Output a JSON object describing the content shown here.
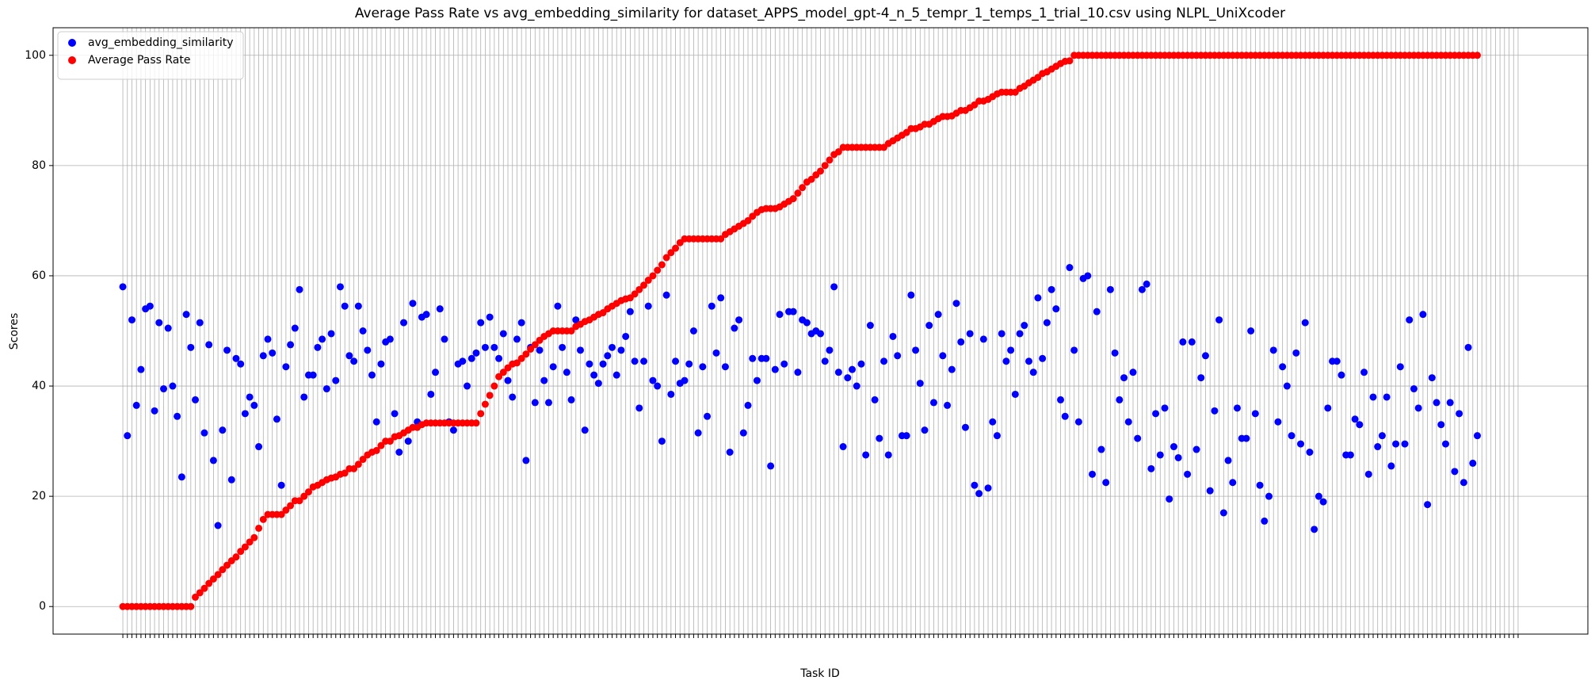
{
  "chart_data": {
    "type": "scatter",
    "title": "Average Pass Rate vs avg_embedding_similarity for dataset_APPS_model_gpt-4_n_5_tempr_1_temps_1_trial_10.csv using NLPL_UniXcoder",
    "x_label": "Task ID",
    "y_label": "Scores",
    "legend": "upper left",
    "grid": true,
    "ylim": [
      -5,
      105
    ],
    "yticks": [
      0,
      20,
      40,
      60,
      80,
      100
    ],
    "categories": [
      null,
      null,
      null,
      null,
      null,
      null,
      null,
      null,
      null,
      null,
      null,
      null,
      null,
      null,
      null,
      null,
      null,
      null,
      null,
      null,
      null,
      null,
      null,
      null,
      null,
      null,
      null,
      null,
      null,
      null,
      null,
      null,
      null,
      null,
      null,
      null,
      null,
      null,
      null,
      null,
      null,
      null,
      null,
      null,
      null,
      null,
      null,
      null,
      null,
      null,
      null,
      null,
      null,
      null,
      null,
      null,
      null,
      null,
      null,
      null,
      null,
      null,
      null,
      null,
      null,
      null,
      null,
      null,
      null,
      null,
      null,
      null,
      null,
      null,
      null,
      null,
      null,
      null,
      null,
      null,
      null,
      null,
      null,
      null,
      null,
      null,
      null,
      null,
      null,
      null,
      null,
      null,
      null,
      null,
      null,
      null,
      null,
      null,
      null,
      null,
      null,
      null,
      null,
      null,
      null,
      null,
      null,
      null,
      null,
      null,
      null,
      null,
      null,
      null,
      null,
      null,
      null,
      null,
      null,
      null,
      null,
      null,
      null,
      null,
      null,
      null,
      null,
      null,
      null,
      null,
      null,
      null,
      null,
      null,
      null,
      null,
      null,
      null,
      null,
      null,
      null,
      null,
      null,
      null,
      null,
      null,
      null,
      null,
      null,
      null,
      null,
      null,
      null,
      null,
      null,
      null,
      null,
      null,
      null,
      null,
      null,
      null,
      null,
      null,
      null,
      null,
      null,
      null,
      null,
      null,
      null,
      null,
      null,
      null,
      null,
      null,
      null,
      null,
      null,
      null,
      null,
      null,
      null,
      null,
      null,
      null,
      null,
      null,
      null,
      null,
      null,
      null,
      null,
      null,
      null,
      null,
      null,
      null,
      null,
      null,
      null,
      null,
      null,
      null,
      null,
      null,
      null,
      null,
      null,
      null,
      null,
      null,
      null,
      null,
      null,
      null,
      null,
      null,
      null,
      null,
      null,
      null,
      null,
      null,
      null,
      null,
      null,
      null,
      null,
      null,
      null,
      null,
      null,
      null,
      null,
      null,
      null,
      null,
      null,
      null,
      null,
      null,
      null,
      null,
      null,
      null,
      null,
      null,
      null,
      null,
      null,
      null,
      null,
      null,
      null,
      null,
      null,
      null,
      null,
      null,
      null,
      null,
      null,
      null,
      null,
      null,
      null,
      null,
      null,
      null,
      null,
      null,
      null,
      null,
      null,
      null,
      null,
      null,
      null,
      null,
      null,
      null,
      null,
      null,
      null,
      null,
      null,
      null,
      null,
      null,
      null,
      null,
      null,
      null,
      null,
      null,
      null,
      null,
      null,
      null,
      null,
      null,
      null,
      null,
      null,
      null,
      null,
      null,
      null
    ],
    "series": [
      {
        "name": "avg_embedding_similarity",
        "color": "blue",
        "values": [
          58,
          31,
          52,
          36.5,
          43,
          54,
          54.5,
          35.5,
          51.5,
          39.5,
          50.5,
          40,
          34.5,
          23.5,
          53,
          47,
          37.5,
          51.5,
          31.5,
          47.5,
          26.5,
          14.7,
          32,
          46.5,
          23,
          45,
          44,
          35,
          38,
          36.5,
          29,
          45.5,
          48.5,
          46,
          34,
          22,
          43.5,
          47.5,
          50.5,
          57.5,
          38,
          42,
          42,
          47,
          48.5,
          39.5,
          49.5,
          41,
          58,
          54.5,
          45.5,
          44.5,
          54.5,
          50,
          46.5,
          42,
          33.5,
          44,
          48,
          48.5,
          35,
          28,
          51.5,
          30,
          55,
          33.5,
          52.5,
          53,
          38.5,
          42.5,
          54,
          48.5,
          33.5,
          32,
          44,
          44.5,
          40,
          45,
          46,
          51.5,
          47,
          52.5,
          47,
          45,
          49.5,
          41,
          38,
          48.5,
          51.5,
          26.5,
          47,
          37,
          46.5,
          41,
          37,
          43.5,
          54.5,
          47,
          42.5,
          37.5,
          52,
          46.5,
          32,
          44,
          42,
          40.5,
          44,
          45.5,
          47,
          42,
          46.5,
          49,
          53.5,
          44.5,
          36,
          44.5,
          54.5,
          41,
          40,
          30,
          56.5,
          38.5,
          44.5,
          40.5,
          41,
          44,
          50,
          31.5,
          43.5,
          34.5,
          54.5,
          46,
          56,
          43.5,
          28,
          50.5,
          52,
          31.5,
          36.5,
          45,
          41,
          45,
          45,
          25.5,
          43,
          53,
          44,
          53.5,
          53.5,
          42.5,
          52,
          51.5,
          49.5,
          50,
          49.5,
          44.5,
          46.5,
          58,
          42.5,
          29,
          41.5,
          43,
          40,
          44,
          27.5,
          51,
          37.5,
          30.5,
          44.5,
          27.5,
          49,
          45.5,
          31,
          31,
          56.5,
          46.5,
          40.5,
          32,
          51,
          37,
          53,
          45.5,
          36.5,
          43,
          55,
          48,
          32.5,
          49.5,
          22,
          20.5,
          48.5,
          21.5,
          33.5,
          31,
          49.5,
          44.5,
          46.5,
          38.5,
          49.5,
          51,
          44.5,
          42.5,
          56,
          45,
          51.5,
          57.5,
          54,
          37.5,
          34.5,
          61.5,
          46.5,
          33.5,
          59.5,
          60,
          24,
          53.5,
          28.5,
          22.5,
          57.5,
          46,
          37.5,
          41.5,
          33.5,
          42.5,
          30.5,
          57.5,
          58.5,
          25,
          35,
          27.5,
          36,
          19.5,
          29,
          27,
          48,
          24,
          48,
          28.5,
          41.5,
          45.5,
          21,
          35.5,
          52,
          17,
          26.5,
          22.5,
          36,
          30.5,
          30.5,
          50,
          35,
          22,
          15.5,
          20,
          46.5,
          33.5,
          43.5,
          40,
          31,
          46,
          29.5,
          51.5,
          28,
          14,
          20,
          19,
          36,
          44.5,
          44.5,
          42,
          27.5,
          27.5,
          34,
          33,
          42.5,
          24,
          38,
          29,
          31,
          38,
          25.5,
          29.5,
          43.5,
          29.5,
          52,
          39.5,
          36,
          53,
          18.5,
          41.5,
          37,
          33,
          29.5,
          37,
          24.5,
          35,
          22.5,
          47,
          26,
          31
        ]
      },
      {
        "name": "Average Pass Rate",
        "color": "red",
        "values": [
          0,
          0,
          0,
          0,
          0,
          0,
          0,
          0,
          0,
          0,
          0,
          0,
          0,
          0,
          0,
          0,
          1.7,
          2.5,
          3.3,
          4.2,
          5,
          5.8,
          6.7,
          7.5,
          8.3,
          9,
          10,
          10.8,
          11.7,
          12.5,
          14.2,
          15.8,
          16.7,
          16.7,
          16.7,
          16.7,
          17.5,
          18.3,
          19.2,
          19.2,
          20,
          20.8,
          21.7,
          22,
          22.5,
          23,
          23.3,
          23.5,
          24,
          24.2,
          25,
          25,
          25.8,
          26.7,
          27.5,
          28,
          28.3,
          29.2,
          30,
          30,
          30.8,
          31,
          31.5,
          32,
          32.5,
          32.5,
          33,
          33.3,
          33.3,
          33.3,
          33.3,
          33.3,
          33.3,
          33.3,
          33.3,
          33.3,
          33.3,
          33.3,
          33.3,
          35,
          36.7,
          38.3,
          40,
          41.7,
          42.5,
          43.3,
          44,
          44.2,
          45,
          45.8,
          46.7,
          47.5,
          48.3,
          49,
          49.5,
          50,
          50,
          50,
          50,
          50,
          50.8,
          51.2,
          51.7,
          52,
          52.5,
          53,
          53.3,
          54,
          54.5,
          55,
          55.5,
          55.8,
          56,
          56.7,
          57.5,
          58.3,
          59.2,
          60,
          61,
          62,
          63.3,
          64.2,
          65,
          66,
          66.7,
          66.7,
          66.7,
          66.7,
          66.7,
          66.7,
          66.7,
          66.7,
          66.7,
          67.5,
          68,
          68.5,
          69,
          69.5,
          70,
          70.8,
          71.5,
          72,
          72.2,
          72.2,
          72.2,
          72.5,
          73,
          73.5,
          74,
          75,
          76,
          77,
          77.5,
          78.3,
          79,
          80,
          81,
          82,
          82.5,
          83.3,
          83.3,
          83.3,
          83.3,
          83.3,
          83.3,
          83.3,
          83.3,
          83.3,
          83.3,
          84,
          84.5,
          85,
          85.5,
          86,
          86.7,
          86.7,
          87,
          87.5,
          87.5,
          88,
          88.5,
          88.9,
          88.9,
          89,
          89.5,
          90,
          90,
          90.5,
          91,
          91.7,
          91.7,
          92,
          92.5,
          93,
          93.3,
          93.3,
          93.3,
          93.3,
          94,
          94.4,
          95,
          95.5,
          96,
          96.7,
          97,
          97.5,
          98,
          98.5,
          98.9,
          99,
          100,
          100,
          100,
          100,
          100,
          100,
          100,
          100,
          100,
          100,
          100,
          100,
          100,
          100,
          100,
          100,
          100,
          100,
          100,
          100,
          100,
          100,
          100,
          100,
          100,
          100,
          100,
          100,
          100,
          100,
          100,
          100,
          100,
          100,
          100,
          100,
          100,
          100,
          100,
          100,
          100,
          100,
          100,
          100,
          100,
          100,
          100,
          100,
          100,
          100,
          100,
          100,
          100,
          100,
          100,
          100,
          100,
          100,
          100,
          100,
          100,
          100,
          100,
          100,
          100,
          100,
          100,
          100,
          100,
          100,
          100,
          100,
          100,
          100,
          100,
          100,
          100,
          100,
          100,
          100,
          100,
          100,
          100,
          100,
          100,
          100,
          100,
          100,
          100,
          100
        ]
      }
    ]
  }
}
